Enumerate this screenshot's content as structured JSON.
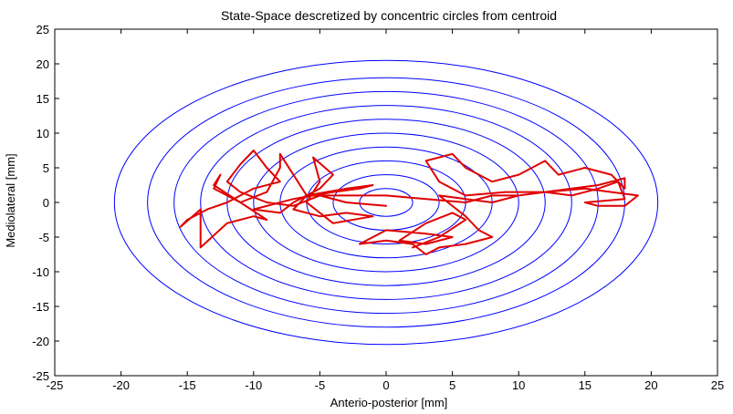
{
  "chart_data": {
    "type": "line",
    "title": "State-Space descretized by concentric circles from centroid",
    "xlabel": "Anterio-posterior [mm]",
    "ylabel": "Mediolateral [mm]",
    "xlim": [
      -25,
      25
    ],
    "ylim": [
      -25,
      25
    ],
    "x_ticks": [
      -25,
      -20,
      -15,
      -10,
      -5,
      0,
      5,
      10,
      15,
      20,
      25
    ],
    "y_ticks": [
      -25,
      -20,
      -15,
      -10,
      -5,
      0,
      5,
      10,
      15,
      20,
      25
    ],
    "x_tick_labels": [
      "-25",
      "-20",
      "-15",
      "-10",
      "-5",
      "0",
      "5",
      "10",
      "15",
      "20",
      "25"
    ],
    "y_tick_labels": [
      "-25",
      "-20",
      "-15",
      "-10",
      "-5",
      "0",
      "5",
      "10",
      "15",
      "20",
      "25"
    ],
    "grid": false,
    "circles": {
      "color": "#0000ff",
      "center": [
        0,
        0
      ],
      "radii": [
        2,
        4,
        6,
        8,
        10,
        12,
        14,
        16,
        18,
        20.5
      ]
    },
    "series": [
      {
        "color": "#e00000",
        "points": [
          [
            0,
            -0.5
          ],
          [
            -3,
            0
          ],
          [
            -5,
            1
          ],
          [
            -7,
            -0.5
          ],
          [
            -9,
            0
          ],
          [
            -11,
            1.5
          ],
          [
            -12,
            3
          ],
          [
            -11,
            5.5
          ],
          [
            -10,
            7.5
          ],
          [
            -9,
            5
          ],
          [
            -8,
            3
          ],
          [
            -10,
            2
          ],
          [
            -12,
            0
          ],
          [
            -13.5,
            -1
          ],
          [
            -15,
            -2.5
          ],
          [
            -15.5,
            -3.5
          ],
          [
            -14,
            -1
          ],
          [
            -14,
            -5
          ],
          [
            -14,
            -6.5
          ],
          [
            -12,
            -3
          ],
          [
            -10,
            -2
          ],
          [
            -9,
            -2.5
          ],
          [
            -11,
            0
          ],
          [
            -13,
            2
          ],
          [
            -12.5,
            4
          ],
          [
            -13,
            2.5
          ],
          [
            -11,
            0
          ],
          [
            -9,
            1.5
          ],
          [
            -8,
            5
          ],
          [
            -8,
            7
          ],
          [
            -7,
            4
          ],
          [
            -6,
            1
          ],
          [
            -7,
            -1
          ],
          [
            -5,
            -2
          ],
          [
            -3,
            -1.5
          ],
          [
            -1,
            -2
          ],
          [
            -4,
            -3
          ],
          [
            -6,
            0
          ],
          [
            -5,
            3
          ],
          [
            -5.5,
            6.5
          ],
          [
            -4,
            4
          ],
          [
            -5,
            2
          ],
          [
            -7,
            0
          ],
          [
            -8,
            -1.5
          ],
          [
            -10,
            -1
          ],
          [
            -7,
            0.5
          ],
          [
            -4,
            1.5
          ],
          [
            -2,
            2
          ],
          [
            -1,
            2.5
          ],
          [
            -3,
            2
          ],
          [
            -6,
            1
          ],
          [
            -3,
            1
          ],
          [
            0,
            1
          ],
          [
            3,
            0.5
          ],
          [
            6,
            0
          ],
          [
            8,
            1
          ],
          [
            10,
            1
          ],
          [
            12,
            1.5
          ],
          [
            14,
            2
          ],
          [
            16,
            2.5
          ],
          [
            18,
            3.5
          ],
          [
            18,
            2
          ],
          [
            17,
            4
          ],
          [
            15,
            5
          ],
          [
            13,
            4
          ],
          [
            12,
            6
          ],
          [
            10,
            4
          ],
          [
            8,
            3
          ],
          [
            6,
            5
          ],
          [
            5,
            7
          ],
          [
            3,
            6
          ],
          [
            4,
            3
          ],
          [
            6,
            1
          ],
          [
            9,
            1.5
          ],
          [
            12,
            1.5
          ],
          [
            15,
            2
          ],
          [
            17,
            1.5
          ],
          [
            19,
            1
          ],
          [
            18,
            -0.5
          ],
          [
            16,
            -0.5
          ],
          [
            15,
            0
          ],
          [
            18,
            0.5
          ],
          [
            17.5,
            3
          ],
          [
            16,
            2
          ],
          [
            14,
            1
          ],
          [
            12,
            1.5
          ],
          [
            10,
            1
          ],
          [
            8,
            0
          ],
          [
            6,
            0.5
          ],
          [
            4,
            1
          ],
          [
            6,
            -2
          ],
          [
            7,
            -4
          ],
          [
            8,
            -5
          ],
          [
            6,
            -6
          ],
          [
            4,
            -6.5
          ],
          [
            3,
            -7.5
          ],
          [
            2,
            -6
          ],
          [
            0,
            -5.5
          ],
          [
            -2,
            -6
          ],
          [
            0,
            -4
          ],
          [
            3,
            -4.5
          ],
          [
            5,
            -5
          ],
          [
            3,
            -6
          ],
          [
            1,
            -5.5
          ],
          [
            3,
            -3
          ],
          [
            5,
            -1.5
          ],
          [
            6,
            -2.5
          ],
          [
            4,
            -5
          ],
          [
            2,
            -6.5
          ]
        ]
      }
    ]
  }
}
